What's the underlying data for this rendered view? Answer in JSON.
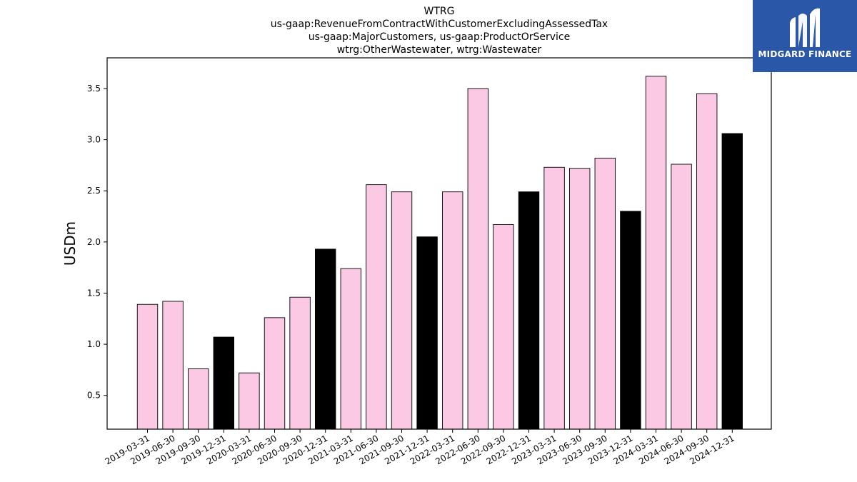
{
  "brand": {
    "name": "MIDGARD FINANCE",
    "bg_color": "#2b57a8",
    "icon": "midgard-logo-icon"
  },
  "chart_data": {
    "type": "bar",
    "title_lines": [
      "WTRG",
      "us-gaap:RevenueFromContractWithCustomerExcludingAssessedTax",
      "us-gaap:MajorCustomers, us-gaap:ProductOrService",
      "wtrg:OtherWastewater, wtrg:Wastewater"
    ],
    "xlabel": "",
    "ylabel": "USDm",
    "ylim": [
      0.17,
      3.8
    ],
    "yticks": [
      0.5,
      1.0,
      1.5,
      2.0,
      2.5,
      3.0,
      3.5
    ],
    "ytick_labels": [
      "0.5",
      "1.0",
      "1.5",
      "2.0",
      "2.5",
      "3.0",
      "3.5"
    ],
    "grid": false,
    "colors": {
      "quarter": "#fbc9e4",
      "year_end": "#000000",
      "edge": "#000000"
    },
    "categories": [
      "2019-03-31",
      "2019-06-30",
      "2019-09-30",
      "2019-12-31",
      "2020-03-31",
      "2020-06-30",
      "2020-09-30",
      "2020-12-31",
      "2021-03-31",
      "2021-06-30",
      "2021-09-30",
      "2021-12-31",
      "2022-03-31",
      "2022-06-30",
      "2022-09-30",
      "2022-12-31",
      "2023-03-31",
      "2023-06-30",
      "2023-09-30",
      "2023-12-31",
      "2024-03-31",
      "2024-06-30",
      "2024-09-30",
      "2024-12-31"
    ],
    "values": [
      1.39,
      1.42,
      0.76,
      1.07,
      0.72,
      1.26,
      1.46,
      1.93,
      1.74,
      2.56,
      2.49,
      2.05,
      2.49,
      3.5,
      2.17,
      2.49,
      2.73,
      2.72,
      2.82,
      2.3,
      3.62,
      2.76,
      3.45,
      3.06
    ],
    "highlight": [
      false,
      false,
      false,
      true,
      false,
      false,
      false,
      true,
      false,
      false,
      false,
      true,
      false,
      false,
      false,
      true,
      false,
      false,
      false,
      true,
      false,
      false,
      false,
      true
    ]
  }
}
